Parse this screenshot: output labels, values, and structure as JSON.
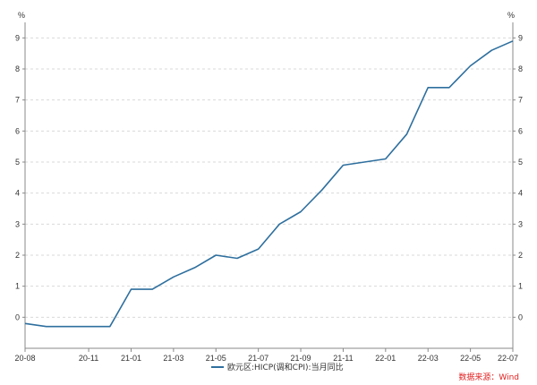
{
  "chart_data": {
    "type": "line",
    "title": "",
    "xlabel": "",
    "ylabel": "%",
    "ylabel_right": "%",
    "x": [
      "20-08",
      "20-09",
      "20-10",
      "20-11",
      "20-12",
      "21-01",
      "21-02",
      "21-03",
      "21-04",
      "21-05",
      "21-06",
      "21-07",
      "21-08",
      "21-09",
      "21-10",
      "21-11",
      "21-12",
      "22-01",
      "22-02",
      "22-03",
      "22-04",
      "22-05",
      "22-06",
      "22-07"
    ],
    "x_tick_labels": [
      "20-08",
      "20-11",
      "21-01",
      "21-03",
      "21-05",
      "21-07",
      "21-09",
      "21-11",
      "22-01",
      "22-03",
      "22-05",
      "22-07"
    ],
    "y_ticks": [
      0,
      1,
      2,
      3,
      4,
      5,
      6,
      7,
      8,
      9
    ],
    "ylim": [
      -1,
      9.5
    ],
    "grid": "horizontal-dashed",
    "legend_position": "bottom-center",
    "series": [
      {
        "name": "欧元区:HICP(调和CPI):当月同比",
        "color": "#2e6f9e",
        "values": [
          -0.2,
          -0.3,
          -0.3,
          -0.3,
          -0.3,
          0.9,
          0.9,
          1.3,
          1.6,
          2.0,
          1.9,
          2.2,
          3.0,
          3.4,
          4.1,
          4.9,
          5.0,
          5.1,
          5.9,
          7.4,
          7.4,
          8.1,
          8.6,
          8.9
        ]
      }
    ],
    "source": "数据来源：Wind"
  }
}
